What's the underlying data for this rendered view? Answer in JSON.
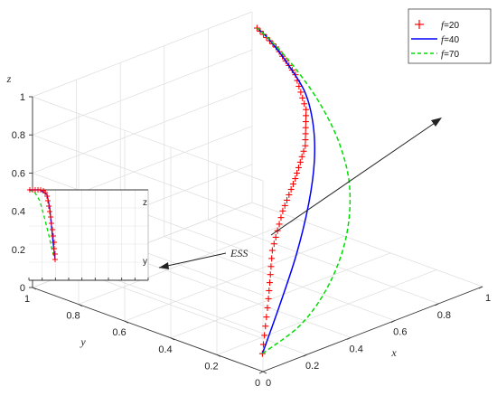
{
  "chart_data": {
    "type": "line",
    "title": "",
    "xlabel": "x",
    "ylabel": "y",
    "zlabel": "z",
    "axis_ranges": {
      "x": [
        0,
        1
      ],
      "y": [
        0,
        1
      ],
      "z": [
        0,
        1
      ]
    },
    "x_ticks": [
      "0",
      "0.2",
      "0.4",
      "0.6",
      "0.8",
      "1"
    ],
    "y_ticks": [
      "0",
      "0.2",
      "0.4",
      "0.6",
      "0.8",
      "1"
    ],
    "z_ticks": [
      "0",
      "0.2",
      "0.4",
      "0.6",
      "0.8",
      "1"
    ],
    "grid": true,
    "legend_position": "top-right",
    "series": [
      {
        "name_prefix": "f",
        "name_suffix": "=20",
        "style": "red-plus-markers",
        "color": "#ff0000",
        "points": [
          [
            0.05,
            0.05,
            0.05
          ],
          [
            0.13,
            0.1,
            0.28
          ],
          [
            0.2,
            0.15,
            0.48
          ],
          [
            0.3,
            0.2,
            0.62
          ],
          [
            0.42,
            0.26,
            0.71
          ],
          [
            0.56,
            0.35,
            0.78
          ],
          [
            0.7,
            0.48,
            0.85
          ],
          [
            0.83,
            0.65,
            0.9
          ],
          [
            0.92,
            0.82,
            0.93
          ],
          [
            0.97,
            0.95,
            0.95
          ]
        ]
      },
      {
        "name_prefix": "f",
        "name_suffix": "=40",
        "style": "solid",
        "color": "#0000ff",
        "points": [
          [
            0.05,
            0.05,
            0.05
          ],
          [
            0.18,
            0.1,
            0.22
          ],
          [
            0.32,
            0.16,
            0.4
          ],
          [
            0.45,
            0.23,
            0.58
          ],
          [
            0.57,
            0.32,
            0.71
          ],
          [
            0.68,
            0.43,
            0.8
          ],
          [
            0.79,
            0.57,
            0.86
          ],
          [
            0.88,
            0.74,
            0.91
          ],
          [
            0.94,
            0.87,
            0.94
          ],
          [
            0.97,
            0.95,
            0.95
          ]
        ]
      },
      {
        "name_prefix": "f",
        "name_suffix": "=70",
        "style": "dashed",
        "color": "#00dd00",
        "points": [
          [
            0.05,
            0.05,
            0.05
          ],
          [
            0.27,
            0.09,
            0.09
          ],
          [
            0.45,
            0.14,
            0.2
          ],
          [
            0.6,
            0.21,
            0.35
          ],
          [
            0.72,
            0.31,
            0.51
          ],
          [
            0.81,
            0.44,
            0.64
          ],
          [
            0.88,
            0.59,
            0.75
          ],
          [
            0.93,
            0.74,
            0.84
          ],
          [
            0.96,
            0.87,
            0.91
          ],
          [
            0.97,
            0.95,
            0.95
          ]
        ]
      }
    ],
    "annotations": [
      {
        "text": "ESS"
      }
    ],
    "inset": {
      "axis_labels": [
        "z",
        "y"
      ]
    }
  }
}
